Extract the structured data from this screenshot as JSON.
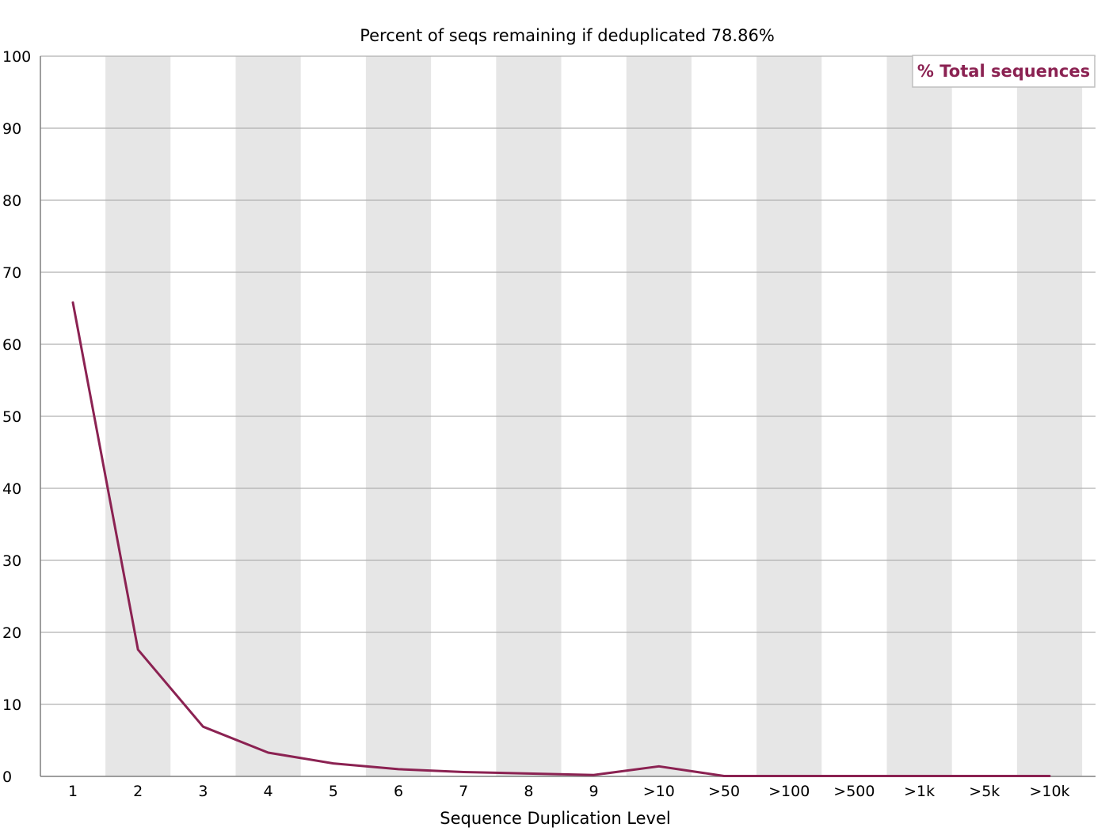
{
  "chart_data": {
    "type": "line",
    "title": "Percent of seqs remaining if deduplicated 78.86%",
    "xlabel": "Sequence Duplication Level",
    "ylabel": "",
    "ylim": [
      0,
      100
    ],
    "yticks": [
      0,
      10,
      20,
      30,
      40,
      50,
      60,
      70,
      80,
      90,
      100
    ],
    "categories": [
      "1",
      "2",
      "3",
      "4",
      "5",
      "6",
      "7",
      "8",
      "9",
      ">10",
      ">50",
      ">100",
      ">500",
      ">1k",
      ">5k",
      ">10k"
    ],
    "series": [
      {
        "name": "% Total sequences",
        "color": "#8b2252",
        "values": [
          65.8,
          17.6,
          6.9,
          3.3,
          1.8,
          1.0,
          0.6,
          0.4,
          0.2,
          1.4,
          0.05,
          0.05,
          0.05,
          0.05,
          0.05,
          0.05
        ]
      }
    ],
    "grid": true,
    "alternating_bands": true,
    "band_color": "#e6e6e6",
    "legend_position": "top-right"
  }
}
